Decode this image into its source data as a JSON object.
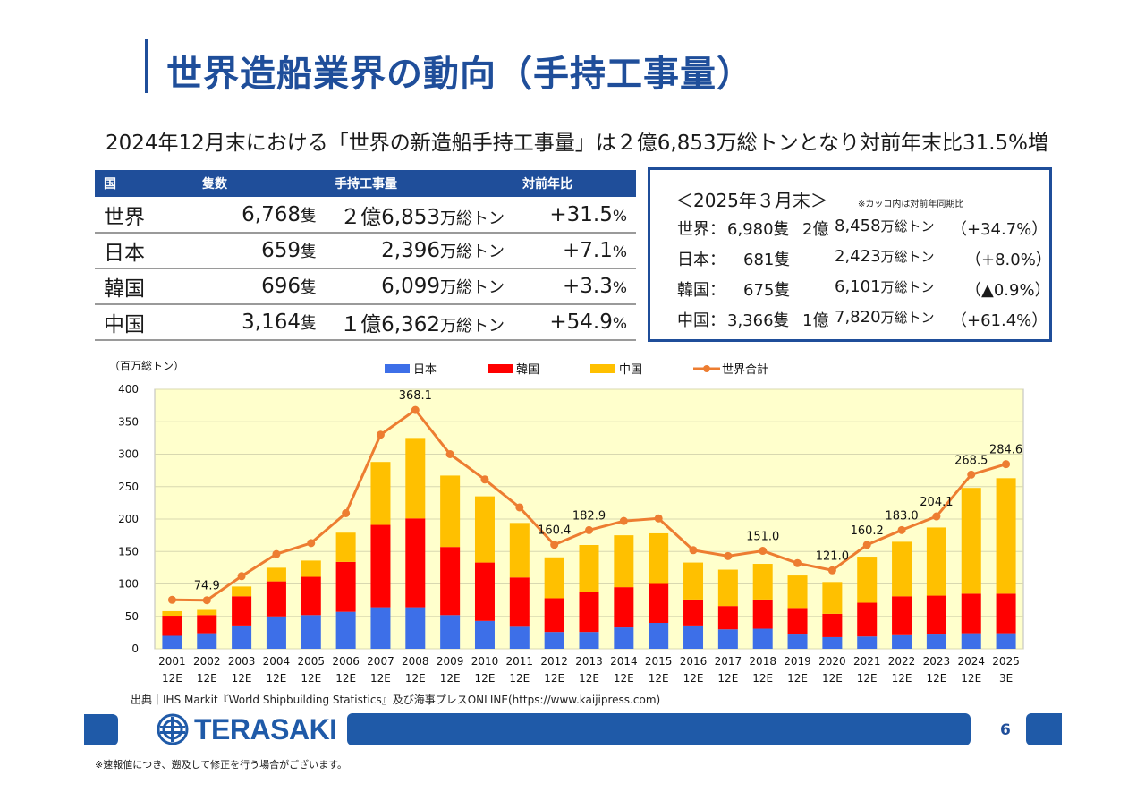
{
  "title": "世界造船業界の動向（手持工事量）",
  "subtitle": "2024年12月末における「世界の新造船手持工事量」は２億6,853万総トンとなり対前年末比31.5%増",
  "table": {
    "headers": [
      "国",
      "隻数",
      "手持工事量",
      "対前年比"
    ],
    "rows": [
      {
        "country": "世界",
        "ships": "6,768",
        "ships_unit": "隻",
        "volume": "２億6,853",
        "volume_unit": "万総トン",
        "change": "+31.5",
        "pct": "%"
      },
      {
        "country": "日本",
        "ships": "659",
        "ships_unit": "隻",
        "volume": "2,396",
        "volume_unit": "万総トン",
        "change": "+7.1",
        "pct": "%"
      },
      {
        "country": "韓国",
        "ships": "696",
        "ships_unit": "隻",
        "volume": "6,099",
        "volume_unit": "万総トン",
        "change": "+3.3",
        "pct": "%"
      },
      {
        "country": "中国",
        "ships": "3,164",
        "ships_unit": "隻",
        "volume": "１億6,362",
        "volume_unit": "万総トン",
        "change": "+54.9",
        "pct": "%"
      }
    ]
  },
  "box": {
    "heading": "＜2025年３月末＞",
    "note": "※カッコ内は対前年同期比",
    "rows": [
      {
        "label": "世界：",
        "ships": "6,980隻",
        "oku": "2億",
        "vol": "8,458",
        "unit": "万総トン",
        "change": "（+34.7%）"
      },
      {
        "label": "日本：",
        "ships": "681隻",
        "oku": "",
        "vol": "2,423",
        "unit": "万総トン",
        "change": "（+8.0%）"
      },
      {
        "label": "韓国：",
        "ships": "675隻",
        "oku": "",
        "vol": "6,101",
        "unit": "万総トン",
        "change": "（▲0.9%）"
      },
      {
        "label": "中国：",
        "ships": "3,366隻",
        "oku": "1億",
        "vol": "7,820",
        "unit": "万総トン",
        "change": "（+61.4%）"
      }
    ]
  },
  "chart_data": {
    "type": "bar",
    "stacked": true,
    "ylabel": "（百万総トン）",
    "ylim": [
      0,
      400
    ],
    "yticks": [
      0,
      50,
      100,
      150,
      200,
      250,
      300,
      350,
      400
    ],
    "categories": [
      "2001\n12E",
      "2002\n12E",
      "2003\n12E",
      "2004\n12E",
      "2005\n12E",
      "2006\n12E",
      "2007\n12E",
      "2008\n12E",
      "2009\n12E",
      "2010\n12E",
      "2011\n12E",
      "2012\n12E",
      "2013\n12E",
      "2014\n12E",
      "2015\n12E",
      "2016\n12E",
      "2017\n12E",
      "2018\n12E",
      "2019\n12E",
      "2020\n12E",
      "2021\n12E",
      "2022\n12E",
      "2023\n12E",
      "2024\n12E",
      "2025\n3E"
    ],
    "series": [
      {
        "name": "日本",
        "color": "#3d6fe8",
        "values": [
          20,
          24,
          36,
          50,
          52,
          57,
          64,
          64,
          52,
          43,
          34,
          26,
          26,
          33,
          40,
          36,
          30,
          31,
          22,
          18,
          19,
          21,
          22,
          24,
          24
        ]
      },
      {
        "name": "韓国",
        "color": "#ff0000",
        "values": [
          31,
          28,
          45,
          54,
          59,
          77,
          127,
          137,
          105,
          90,
          76,
          52,
          61,
          62,
          60,
          40,
          36,
          45,
          41,
          36,
          52,
          60,
          60,
          61,
          61
        ]
      },
      {
        "name": "中国",
        "color": "#ffc000",
        "values": [
          7,
          8,
          15,
          21,
          25,
          45,
          97,
          124,
          110,
          102,
          84,
          63,
          73,
          80,
          78,
          57,
          56,
          55,
          50,
          49,
          71,
          84,
          105,
          163,
          178
        ]
      }
    ],
    "line": {
      "name": "世界合計",
      "color": "#ed7d31",
      "values": [
        75.5,
        74.9,
        112,
        146,
        163,
        209,
        330,
        368.1,
        300,
        261,
        218,
        160.4,
        182.9,
        197,
        201,
        152,
        143,
        151.0,
        132,
        121.0,
        160.2,
        183.0,
        204.1,
        268.5,
        284.6
      ],
      "labels": {
        "1": "74.9",
        "7": "368.1",
        "11": "160.4",
        "12": "182.9",
        "17": "151.0",
        "19": "121.0",
        "20": "160.2",
        "21": "183.0",
        "22": "204.1",
        "23": "268.5",
        "24": "284.6"
      }
    },
    "legend_position": "top",
    "plot_background": "#ffffcc"
  },
  "source": "出典｜IHS Markit『World Shipbuilding Statistics』及び海事プレスONLINE(https://www.kaijipress.com)",
  "logo_text": "TERASAKI",
  "page_number": "6",
  "disclaimer": "※速報値につき、遡及して修正を行う場合がございます。"
}
